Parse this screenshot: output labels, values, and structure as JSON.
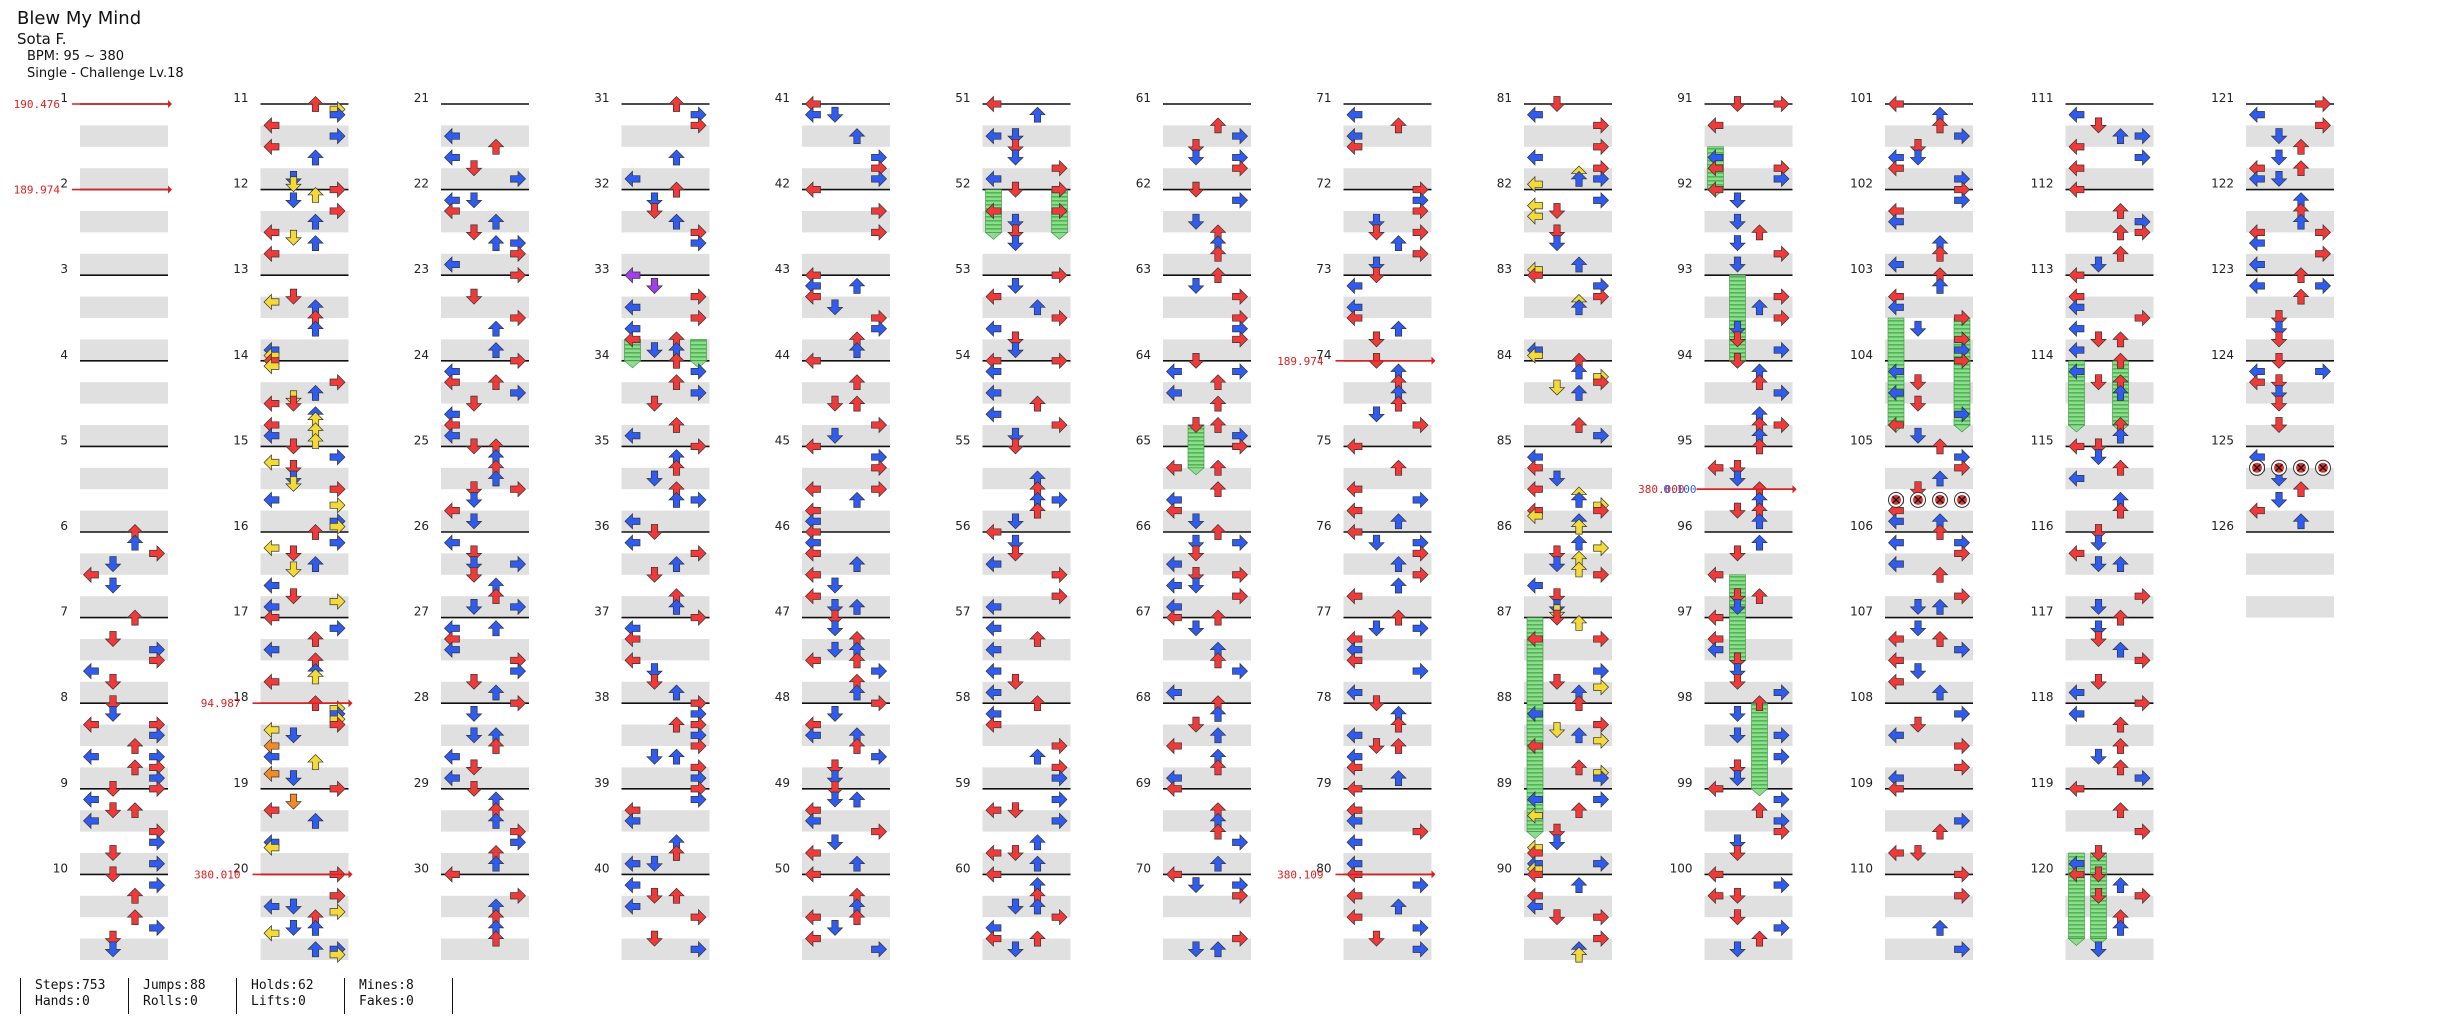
{
  "song": {
    "title": "Blew My Mind",
    "artist": "Sota F.",
    "bpm": "BPM: 95 ~ 380",
    "difficulty": "Single - Challenge  Lv.18"
  },
  "measure_labels": [
    "1",
    "2",
    "3",
    "4",
    "5",
    "6",
    "7",
    "8",
    "9",
    "10",
    "11",
    "12",
    "13",
    "14",
    "15",
    "16",
    "17",
    "18",
    "19",
    "20",
    "21",
    "22",
    "23",
    "24",
    "25",
    "26",
    "27",
    "28",
    "29",
    "30",
    "31",
    "32",
    "33",
    "34",
    "35",
    "36",
    "37",
    "38",
    "39",
    "40",
    "41",
    "42",
    "43",
    "44",
    "45",
    "46",
    "47",
    "48",
    "49",
    "50",
    "51",
    "52",
    "53",
    "54",
    "55",
    "56",
    "57",
    "58",
    "59",
    "60",
    "61",
    "62",
    "63",
    "64",
    "65",
    "66",
    "67",
    "68",
    "69",
    "70",
    "71",
    "72",
    "73",
    "74",
    "75",
    "76",
    "77",
    "78",
    "79",
    "80",
    "81",
    "82",
    "83",
    "84",
    "85",
    "86",
    "87",
    "88",
    "89",
    "90",
    "91",
    "92",
    "93",
    "94",
    "95",
    "96",
    "97",
    "98",
    "99",
    "100",
    "101",
    "102",
    "103",
    "104",
    "105",
    "106",
    "107",
    "108",
    "109",
    "110",
    "111",
    "112",
    "113",
    "114",
    "115",
    "116",
    "117",
    "118",
    "119",
    "120",
    "121",
    "122",
    "123",
    "124",
    "125",
    "126"
  ],
  "bpm_changes": [
    {
      "label": "190.476",
      "column": 1,
      "beat": 0
    },
    {
      "label": "189.974",
      "column": 1,
      "beat": 4
    },
    {
      "label": "94.987",
      "column": 2,
      "beat": 28
    },
    {
      "label": "380.010",
      "column": 2,
      "beat": 36
    },
    {
      "label": "189.974",
      "column": 8,
      "beat": 12
    },
    {
      "label": "380.109",
      "column": 8,
      "beat": 36
    },
    {
      "label": "380.000",
      "column": 10,
      "beat": 18
    },
    {
      "label": "0.100",
      "column": 10,
      "beat": 18
    }
  ],
  "colors": {
    "quarter": "#f03a3a",
    "eighth": "#2f5cee",
    "sixteenth": "#f4da38",
    "thirtysecond": "#a040e8",
    "twelfth": "#f28a2a",
    "hold_body": "#88d88a",
    "hold_stripe": "#4fb651",
    "mine": "#e53030",
    "bpm_line": "#dc2121",
    "stripe": "#e0e0e0"
  },
  "stats": [
    {
      "line1": "Steps:753",
      "line2": "Hands:0"
    },
    {
      "line1": "Jumps:88",
      "line2": "Rolls:0"
    },
    {
      "line1": "Holds:62",
      "line2": "Lifts:0"
    },
    {
      "line1": "Mines:8",
      "line2": "Fakes:0"
    }
  ]
}
